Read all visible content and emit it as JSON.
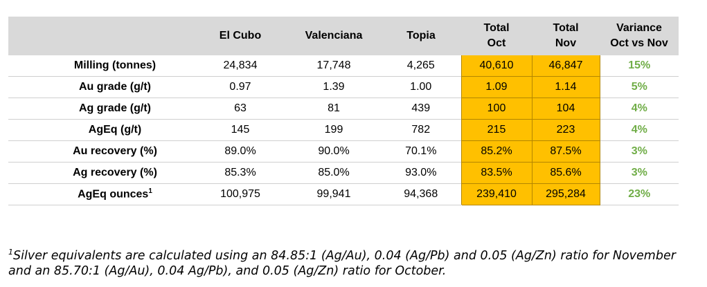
{
  "table": {
    "columns": [
      "",
      "El Cubo",
      "Valenciana",
      "Topia",
      "Total\nOct",
      "Total\nNov",
      "Variance\nOct vs Nov"
    ],
    "rows": [
      {
        "label": "Milling (tonnes)",
        "sup": "",
        "el_cubo": "24,834",
        "valenciana": "17,748",
        "topia": "4,265",
        "total_oct": "40,610",
        "total_nov": "46,847",
        "variance": "15%"
      },
      {
        "label": "Au grade (g/t)",
        "sup": "",
        "el_cubo": "0.97",
        "valenciana": "1.39",
        "topia": "1.00",
        "total_oct": "1.09",
        "total_nov": "1.14",
        "variance": "5%"
      },
      {
        "label": "Ag grade (g/t)",
        "sup": "",
        "el_cubo": "63",
        "valenciana": "81",
        "topia": "439",
        "total_oct": "100",
        "total_nov": "104",
        "variance": "4%"
      },
      {
        "label": "AgEq (g/t)",
        "sup": "",
        "el_cubo": "145",
        "valenciana": "199",
        "topia": "782",
        "total_oct": "215",
        "total_nov": "223",
        "variance": "4%"
      },
      {
        "label": "Au recovery (%)",
        "sup": "",
        "el_cubo": "89.0%",
        "valenciana": "90.0%",
        "topia": "70.1%",
        "total_oct": "85.2%",
        "total_nov": "87.5%",
        "variance": "3%"
      },
      {
        "label": "Ag recovery (%)",
        "sup": "",
        "el_cubo": "85.3%",
        "valenciana": "85.0%",
        "topia": "93.0%",
        "total_oct": "83.5%",
        "total_nov": "85.6%",
        "variance": "3%"
      },
      {
        "label": "AgEq ounces",
        "sup": "1",
        "el_cubo": "100,975",
        "valenciana": "99,941",
        "topia": "94,368",
        "total_oct": "239,410",
        "total_nov": "295,284",
        "variance": "23%"
      }
    ]
  },
  "footnote": {
    "marker": "1",
    "text": "Silver equivalents are calculated using an 84.85:1 (Ag/Au), 0.04 (Ag/Pb) and 0.05 (Ag/Zn) ratio for November and an 85.70:1 (Ag/Au), 0.04 Ag/Pb), and 0.05 (Ag/Zn) ratio for October."
  },
  "colors": {
    "header_bg": "#d9d9d9",
    "highlight": "#ffc000",
    "variance_text": "#70ad47"
  }
}
